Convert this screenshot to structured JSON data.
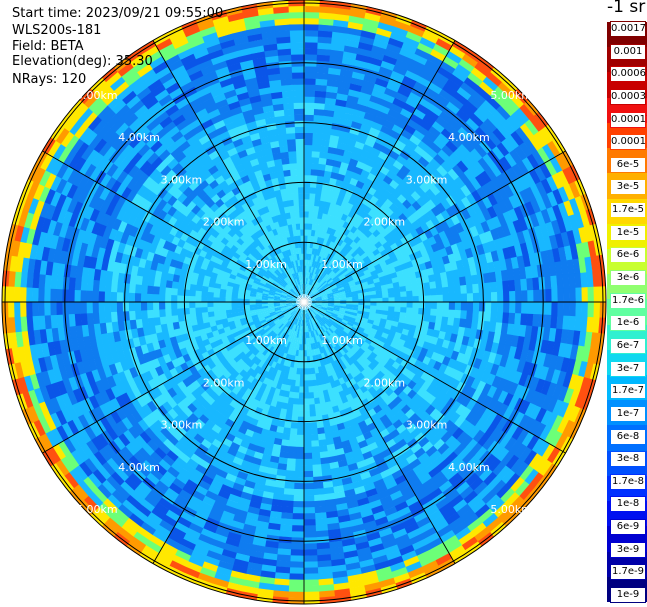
{
  "header": {
    "start_time": "Start time: 2023/09/21 09:55:00",
    "instrument": "WLS200s-181",
    "field": "Field: BETA",
    "elevation": "Elevation(deg): 35.30",
    "nrays": "NRays: 120"
  },
  "colorbar": {
    "units": "-1 sr",
    "labels": [
      "0.0017",
      "0.001",
      "0.0006",
      "0.0003",
      "0.00017",
      "0.0001",
      "6e-5",
      "3e-5",
      "1.7e-5",
      "1e-5",
      "6e-6",
      "3e-6",
      "1.7e-6",
      "1e-6",
      "6e-7",
      "3e-7",
      "1.7e-7",
      "1e-7",
      "6e-8",
      "3e-8",
      "1.7e-8",
      "1e-8",
      "6e-9",
      "3e-9",
      "1.7e-9",
      "1e-9"
    ],
    "colors": [
      "#800000",
      "#a00000",
      "#c80000",
      "#f01010",
      "#ff4000",
      "#ff7a00",
      "#ffb000",
      "#ffd800",
      "#f0f000",
      "#c8ff30",
      "#90ff70",
      "#60ffa0",
      "#30f0d0",
      "#10d8f0",
      "#00b8ff",
      "#0090ff",
      "#0070ff",
      "#0050ff",
      "#0030ff",
      "#0010f0",
      "#0000d0",
      "#0000a8",
      "#000080"
    ]
  },
  "map": {
    "ring_labels": [
      "1.00km",
      "2.00km",
      "3.00km",
      "4.00km",
      "5.00km"
    ],
    "ring_ranges_km": [
      1,
      2,
      3,
      4,
      5
    ],
    "max_range_km": 5.05,
    "spoke_count": 12,
    "bin_count": 50,
    "colors": {
      "near": "#3ce0ff",
      "mid": "#18b8ff",
      "far": "#0f7cf0",
      "dark": "#0a55e8",
      "band_green": "#6cff78",
      "band_yellow": "#ffe800",
      "band_orange": "#ff9a00",
      "band_red": "#ff5010"
    }
  }
}
